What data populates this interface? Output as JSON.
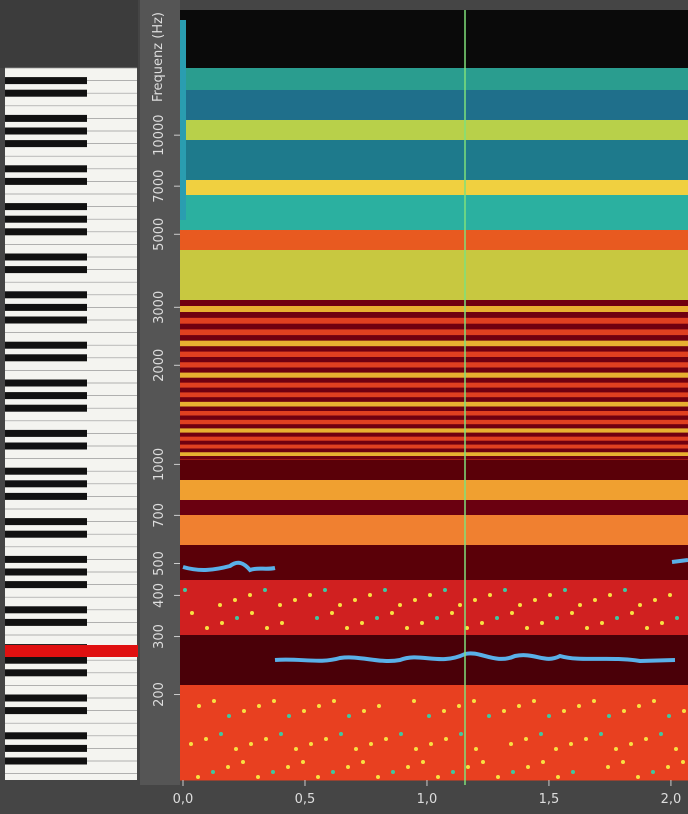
{
  "y_axis": {
    "title": "Frequenz (Hz)",
    "scale": "log",
    "ylim": [
      110,
      24000
    ],
    "ticks": [
      200,
      300,
      400,
      500,
      700,
      1000,
      2000,
      3000,
      5000,
      7000,
      10000
    ]
  },
  "x_axis": {
    "xlim": [
      0,
      2.07
    ],
    "ticks": [
      {
        "value": 0,
        "label": "0,0"
      },
      {
        "value": 0.5,
        "label": "0,5"
      },
      {
        "value": 1.0,
        "label": "1,0"
      },
      {
        "value": 1.5,
        "label": "1,5"
      },
      {
        "value": 2.0,
        "label": "2,0"
      }
    ]
  }
}
